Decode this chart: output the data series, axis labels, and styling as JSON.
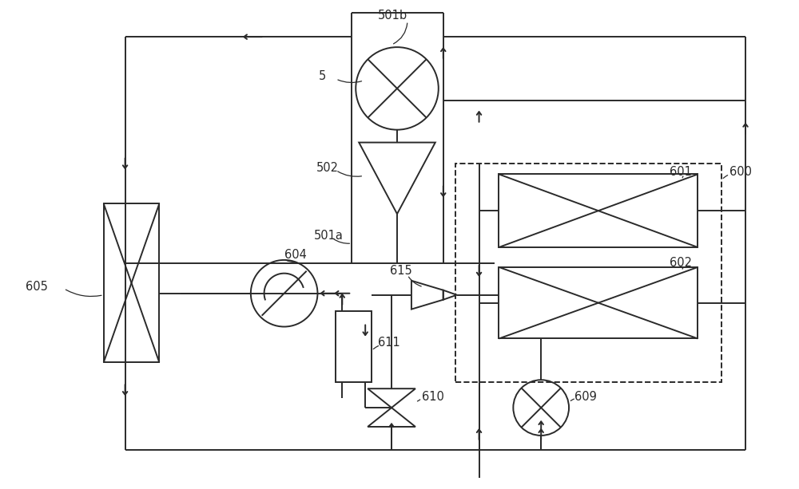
{
  "bg_color": "#ffffff",
  "lc": "#2a2a2a",
  "lw": 1.4,
  "figsize": [
    10.0,
    6.13
  ],
  "dpi": 100,
  "label_fs": 10.5,
  "label_color": "#2a2a2a"
}
